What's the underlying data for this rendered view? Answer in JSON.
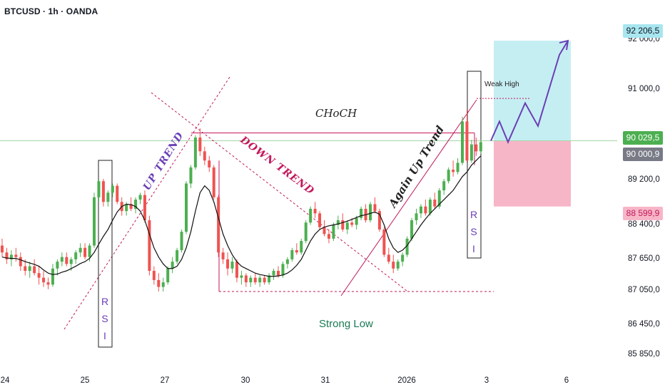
{
  "header": {
    "symbol_line": "BTCUSD · 1h · OANDA"
  },
  "colors": {
    "up": "#4caf50",
    "down": "#ef5350",
    "ma": "#111111",
    "target_zone": "#c5eef3",
    "stop_zone": "#f7b6c8",
    "purple": "#6a3fb5",
    "crimson": "#c2185b",
    "green_text": "#1b7a53"
  },
  "price_tags": [
    {
      "label": "92 206,5",
      "bg": "#a8e6f0",
      "fg": "#131722",
      "price": 92206.5
    },
    {
      "label": "90 029,5",
      "bg": "#4caf50",
      "fg": "#ffffff",
      "price": 90029.5
    },
    {
      "label": "90 000,9",
      "bg": "#787b86",
      "fg": "#ffffff",
      "price": 90000.9
    },
    {
      "label": "88 599,9",
      "bg": "#f7b6c8",
      "fg": "#c2185b",
      "price": 88599.9
    }
  ],
  "chart_data": {
    "type": "candlestick",
    "title": "BTCUSD · 1h · OANDA",
    "y_ticks": [
      "92 000,0",
      "91 000,0",
      "89 200,0",
      "88 400,0",
      "87 650,0",
      "87 050,0",
      "86 450,0",
      "85 850,0"
    ],
    "x_ticks": [
      "24",
      "25",
      "27",
      "30",
      "31",
      "2026",
      "3",
      "6"
    ],
    "ylim": [
      85700,
      92500
    ],
    "annotations": {
      "up_trend": "UP TREND",
      "down_trend": "DOWN TREND",
      "choch": "CHoCH",
      "again_up_trend": "Again Up Trend",
      "weak_high": "Weak High",
      "strong_low": "Strong Low",
      "rsi_left": "R S I",
      "rsi_right": "R S I"
    },
    "ohlc": [
      [
        87750,
        87900,
        87500,
        87600
      ],
      [
        87600,
        87700,
        87350,
        87450
      ],
      [
        87450,
        87650,
        87300,
        87550
      ],
      [
        87550,
        87700,
        87400,
        87500
      ],
      [
        87500,
        87600,
        87200,
        87300
      ],
      [
        87300,
        87450,
        87100,
        87200
      ],
      [
        87200,
        87400,
        87050,
        87300
      ],
      [
        87300,
        87450,
        87100,
        87150
      ],
      [
        87150,
        87300,
        86900,
        87050
      ],
      [
        87050,
        87200,
        86850,
        86950
      ],
      [
        86950,
        87050,
        86800,
        86900
      ],
      [
        86900,
        87350,
        86850,
        87250
      ],
      [
        87250,
        87450,
        87100,
        87400
      ],
      [
        87400,
        87600,
        87300,
        87500
      ],
      [
        87500,
        87600,
        87300,
        87350
      ],
      [
        87350,
        87500,
        87200,
        87450
      ],
      [
        87450,
        87650,
        87350,
        87600
      ],
      [
        87600,
        87800,
        87500,
        87700
      ],
      [
        87700,
        87800,
        87450,
        87500
      ],
      [
        87500,
        87800,
        87400,
        87750
      ],
      [
        87750,
        88900,
        87700,
        88800
      ],
      [
        88800,
        89200,
        88700,
        89150
      ],
      [
        89150,
        89200,
        88600,
        88700
      ],
      [
        88700,
        88950,
        88600,
        88900
      ],
      [
        88900,
        89100,
        88800,
        89050
      ],
      [
        89050,
        89100,
        88650,
        88700
      ],
      [
        88700,
        88800,
        88400,
        88500
      ],
      [
        88500,
        88700,
        88400,
        88650
      ],
      [
        88650,
        88800,
        88500,
        88550
      ],
      [
        88550,
        88800,
        88450,
        88750
      ],
      [
        88750,
        88900,
        88650,
        88850
      ],
      [
        88850,
        88950,
        88250,
        88300
      ],
      [
        88300,
        88400,
        87100,
        87200
      ],
      [
        87200,
        87300,
        86900,
        87000
      ],
      [
        87000,
        87150,
        86750,
        86850
      ],
      [
        86850,
        87050,
        86750,
        86950
      ],
      [
        86950,
        87300,
        86900,
        87250
      ],
      [
        87250,
        87500,
        87150,
        87400
      ],
      [
        87400,
        87700,
        87350,
        87650
      ],
      [
        87650,
        88100,
        87600,
        88050
      ],
      [
        88050,
        89150,
        88000,
        89100
      ],
      [
        89100,
        89500,
        89000,
        89450
      ],
      [
        89450,
        90150,
        89400,
        90100
      ],
      [
        90100,
        90300,
        89700,
        89800
      ],
      [
        89800,
        89900,
        89500,
        89600
      ],
      [
        89600,
        89700,
        89350,
        89450
      ],
      [
        89450,
        89500,
        88750,
        88800
      ],
      [
        88800,
        88850,
        87500,
        87600
      ],
      [
        87600,
        87700,
        87350,
        87450
      ],
      [
        87450,
        87600,
        87100,
        87250
      ],
      [
        87250,
        87500,
        87150,
        87400
      ],
      [
        87400,
        87450,
        86950,
        87050
      ],
      [
        87050,
        87200,
        86900,
        87100
      ],
      [
        87100,
        87150,
        86850,
        86950
      ],
      [
        86950,
        87100,
        86850,
        87050
      ],
      [
        87050,
        87150,
        86900,
        86950
      ],
      [
        86950,
        87100,
        86850,
        87050
      ],
      [
        87050,
        87100,
        86900,
        86950
      ],
      [
        86950,
        87150,
        86900,
        87100
      ],
      [
        87100,
        87250,
        87000,
        87200
      ],
      [
        87200,
        87300,
        87050,
        87100
      ],
      [
        87100,
        87400,
        87050,
        87350
      ],
      [
        87350,
        87500,
        87250,
        87450
      ],
      [
        87450,
        87700,
        87400,
        87650
      ],
      [
        87650,
        87800,
        87550,
        87600
      ],
      [
        87600,
        87900,
        87550,
        87850
      ],
      [
        87850,
        88300,
        87800,
        88250
      ],
      [
        88250,
        88600,
        88200,
        88550
      ],
      [
        88550,
        88700,
        88350,
        88450
      ],
      [
        88450,
        88500,
        88100,
        88150
      ],
      [
        88150,
        88300,
        87950,
        88000
      ],
      [
        88000,
        88100,
        87800,
        87900
      ],
      [
        87900,
        88250,
        87850,
        88200
      ],
      [
        88200,
        88400,
        88100,
        88300
      ],
      [
        88300,
        88450,
        88050,
        88100
      ],
      [
        88100,
        88300,
        88000,
        88250
      ],
      [
        88250,
        88350,
        88150,
        88200
      ],
      [
        88200,
        88400,
        88100,
        88350
      ],
      [
        88350,
        88600,
        88300,
        88550
      ],
      [
        88550,
        88650,
        88250,
        88300
      ],
      [
        88300,
        88700,
        88250,
        88650
      ],
      [
        88650,
        88800,
        88450,
        88500
      ],
      [
        88500,
        88550,
        88050,
        88100
      ],
      [
        88100,
        88150,
        87500,
        87550
      ],
      [
        87550,
        87700,
        87350,
        87400
      ],
      [
        87400,
        87550,
        87150,
        87250
      ],
      [
        87250,
        87450,
        87200,
        87400
      ],
      [
        87400,
        87600,
        87300,
        87550
      ],
      [
        87550,
        87950,
        87500,
        87900
      ],
      [
        87900,
        88350,
        87850,
        88300
      ],
      [
        88300,
        88550,
        88200,
        88450
      ],
      [
        88450,
        88650,
        88350,
        88600
      ],
      [
        88600,
        88750,
        88400,
        88450
      ],
      [
        88450,
        88800,
        88400,
        88750
      ],
      [
        88750,
        88900,
        88550,
        88600
      ],
      [
        88600,
        89000,
        88550,
        88950
      ],
      [
        88950,
        89200,
        88850,
        89150
      ],
      [
        89150,
        89450,
        89100,
        89400
      ],
      [
        89400,
        89600,
        89250,
        89350
      ],
      [
        89350,
        89650,
        89300,
        89550
      ],
      [
        89550,
        90550,
        89500,
        90450
      ],
      [
        90450,
        90700,
        89550,
        89600
      ],
      [
        89600,
        90050,
        89550,
        89950
      ],
      [
        89950,
        90100,
        89700,
        89800
      ],
      [
        89800,
        90050,
        89750,
        90000
      ]
    ],
    "ma_values": [
      87500,
      87480,
      87470,
      87470,
      87440,
      87400,
      87370,
      87340,
      87300,
      87220,
      87150,
      87120,
      87130,
      87170,
      87200,
      87250,
      87300,
      87360,
      87400,
      87470,
      87600,
      87780,
      87950,
      88100,
      88300,
      88480,
      88600,
      88650,
      88640,
      88600,
      88500,
      88300,
      88000,
      87700,
      87500,
      87350,
      87250,
      87250,
      87300,
      87450,
      87700,
      88050,
      88500,
      88900,
      89050,
      88950,
      88700,
      88350,
      88000,
      87750,
      87550,
      87400,
      87300,
      87250,
      87200,
      87150,
      87120,
      87100,
      87080,
      87080,
      87090,
      87110,
      87150,
      87220,
      87320,
      87450,
      87650,
      87850,
      88000,
      88100,
      88150,
      88180,
      88200,
      88220,
      88250,
      88280,
      88320,
      88360,
      88400,
      88420,
      88450,
      88480,
      88430,
      88200,
      87900,
      87700,
      87600,
      87650,
      87750,
      87900,
      88050,
      88200,
      88330,
      88450,
      88550,
      88650,
      88750,
      88850,
      88950,
      89100,
      89250,
      89350,
      89500,
      89600,
      89700
    ],
    "projection_path": [
      [
        90029.5,
        0
      ],
      [
        90450,
        2
      ],
      [
        90000,
        4
      ],
      [
        90850,
        8
      ],
      [
        90350,
        11
      ],
      [
        91900,
        16
      ],
      [
        92206.5,
        18
      ]
    ],
    "zones": {
      "target": {
        "from": 90029.5,
        "to": 92206.5
      },
      "stop": {
        "from": 88599.9,
        "to": 90029.5
      }
    },
    "levels": {
      "choch": 90200,
      "weak_high": 90950,
      "strong_low": 86750
    }
  }
}
